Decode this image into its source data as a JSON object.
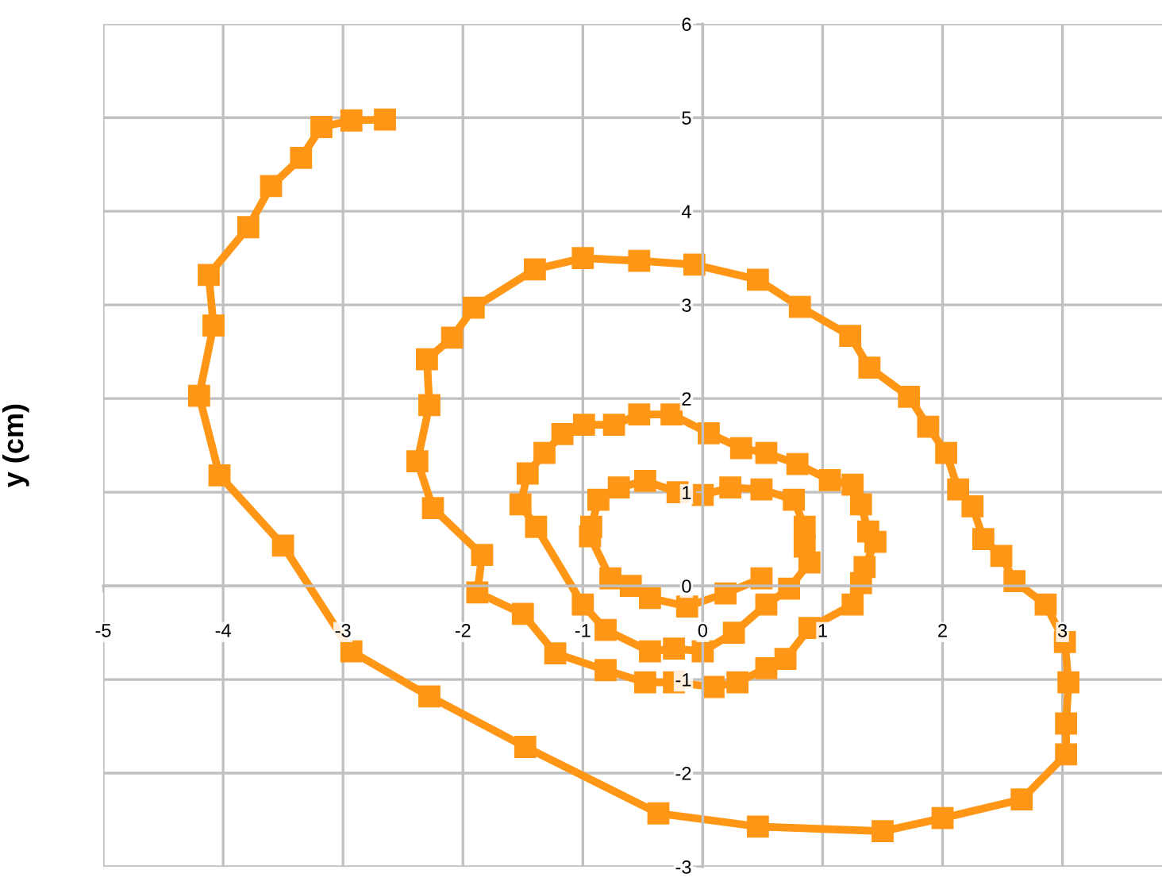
{
  "chart_data": {
    "type": "line",
    "ylabel": "y (cm)",
    "marker": "square",
    "line_style": "solid",
    "grid": true,
    "legend": false,
    "xlim": [
      -5,
      3.83
    ],
    "ylim": [
      -3,
      6
    ],
    "xticks": [
      -5,
      -4,
      -3,
      -2,
      -1,
      0,
      1,
      2,
      3
    ],
    "yticks": [
      -3,
      -2,
      -1,
      0,
      1,
      2,
      3,
      4,
      5,
      6
    ],
    "series": [
      {
        "color": "#ff9616",
        "x": [
          -2.65,
          -2.93,
          -3.18,
          -3.35,
          -3.6,
          -3.79,
          -4.12,
          -4.08,
          -4.2,
          -4.03,
          -3.5,
          -2.93,
          -2.28,
          -1.48,
          -0.37,
          0.46,
          1.5,
          2.0,
          2.66,
          3.03,
          3.03,
          3.05,
          3.02,
          2.86,
          2.6,
          2.49,
          2.34,
          2.25,
          2.13,
          2.03,
          1.88,
          1.72,
          1.39,
          1.23,
          0.81,
          0.46,
          -0.07,
          -0.53,
          -1.0,
          -1.4,
          -1.91,
          -2.09,
          -2.3,
          -2.28,
          -2.38,
          -2.25,
          -1.84,
          -1.88,
          -1.5,
          -1.23,
          -0.81,
          -0.48,
          -0.24,
          0.09,
          0.29,
          0.53,
          0.69,
          0.89,
          1.25,
          1.32,
          1.35,
          1.44,
          1.38,
          1.32,
          1.25,
          1.06,
          0.79,
          0.53,
          0.32,
          0.05,
          -0.26,
          -0.53,
          -0.74,
          -0.99,
          -1.17,
          -1.32,
          -1.46,
          -1.52,
          -1.39,
          -1.0,
          -0.81,
          -0.44,
          -0.24,
          0.0,
          0.26,
          0.53,
          0.72,
          0.89,
          0.85,
          0.85,
          0.76,
          0.49,
          0.23,
          0.0,
          -0.21,
          -0.48,
          -0.7,
          -0.87,
          -0.93,
          -0.94,
          -0.77,
          -0.6,
          -0.44,
          -0.13,
          0.19,
          0.49
        ],
        "values": [
          4.98,
          4.97,
          4.9,
          4.57,
          4.27,
          3.83,
          3.32,
          2.78,
          2.03,
          1.18,
          0.43,
          -0.7,
          -1.18,
          -1.72,
          -2.43,
          -2.57,
          -2.62,
          -2.48,
          -2.28,
          -1.8,
          -1.47,
          -1.03,
          -0.6,
          -0.2,
          0.05,
          0.32,
          0.5,
          0.85,
          1.03,
          1.42,
          1.7,
          2.02,
          2.33,
          2.67,
          2.98,
          3.27,
          3.43,
          3.47,
          3.5,
          3.38,
          2.97,
          2.65,
          2.42,
          1.93,
          1.33,
          0.83,
          0.33,
          -0.07,
          -0.3,
          -0.72,
          -0.9,
          -1.03,
          -1.03,
          -1.08,
          -1.03,
          -0.88,
          -0.78,
          -0.45,
          -0.2,
          0.03,
          0.2,
          0.47,
          0.58,
          0.87,
          1.08,
          1.13,
          1.3,
          1.42,
          1.47,
          1.63,
          1.83,
          1.83,
          1.72,
          1.72,
          1.62,
          1.42,
          1.2,
          0.87,
          0.63,
          -0.2,
          -0.47,
          -0.7,
          -0.67,
          -0.7,
          -0.5,
          -0.2,
          -0.03,
          0.25,
          0.42,
          0.63,
          0.92,
          1.03,
          1.05,
          0.97,
          1.0,
          1.12,
          1.05,
          0.92,
          0.63,
          0.53,
          0.08,
          0.0,
          -0.13,
          -0.22,
          -0.08,
          0.08
        ]
      }
    ]
  }
}
